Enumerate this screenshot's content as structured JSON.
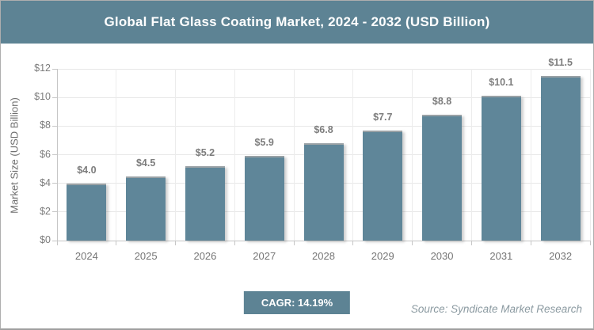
{
  "header": {
    "title": "Global Flat Glass Coating Market, 2024 - 2032 (USD Billion)"
  },
  "chart_data": {
    "type": "bar",
    "title": "Global Flat Glass Coating Market, 2024 - 2032 (USD Billion)",
    "categories": [
      "2024",
      "2025",
      "2026",
      "2027",
      "2028",
      "2029",
      "2030",
      "2031",
      "2032"
    ],
    "values": [
      4.0,
      4.5,
      5.2,
      5.9,
      6.8,
      7.7,
      8.8,
      10.1,
      11.5
    ],
    "value_labels": [
      "$4.0",
      "$4.5",
      "$5.2",
      "$5.9",
      "$6.8",
      "$7.7",
      "$8.8",
      "$10.1",
      "$11.5"
    ],
    "xlabel": "",
    "ylabel": "Market Size (USD Billion)",
    "ylim": [
      0,
      12
    ],
    "ytick_step": 2,
    "ytick_labels": [
      "$0",
      "$2",
      "$4",
      "$6",
      "$8",
      "$10",
      "$12"
    ],
    "grid": true,
    "legend": "none",
    "bar_color": "#5f8699"
  },
  "footer": {
    "cagr_label": "CAGR: 14.19%",
    "source": "Source: Syndicate Market Research"
  },
  "colors": {
    "accent": "#5d8394",
    "bar": "#5f8699",
    "text_gray": "#7c7c7c",
    "gridline": "#e7e7e7"
  }
}
